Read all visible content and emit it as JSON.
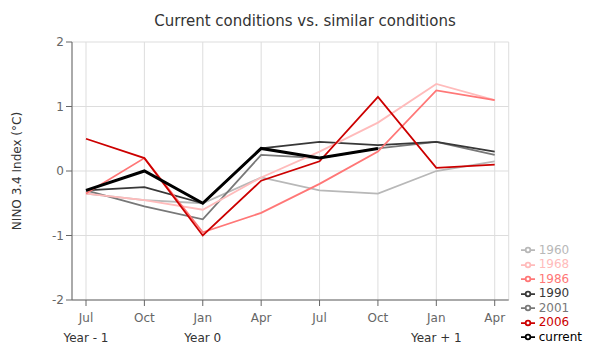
{
  "chart_data": {
    "type": "line",
    "title": "Current conditions vs. similar conditions",
    "ylabel": "NINO 3.4 Index (°C)",
    "categories": [
      "Jul",
      "Oct",
      "Jan",
      "Apr",
      "Jul",
      "Oct",
      "Jan",
      "Apr"
    ],
    "series": [
      {
        "name": "1960",
        "color": "#b8b8b8",
        "values": [
          -0.35,
          -0.45,
          -0.5,
          -0.1,
          -0.3,
          -0.35,
          0.0,
          0.15
        ]
      },
      {
        "name": "2001",
        "color": "#787878",
        "values": [
          -0.3,
          -0.55,
          -0.75,
          0.25,
          0.2,
          0.35,
          0.45,
          0.25
        ]
      },
      {
        "name": "1990",
        "color": "#383838",
        "values": [
          -0.3,
          -0.25,
          -0.5,
          0.35,
          0.45,
          0.4,
          0.45,
          0.3
        ]
      },
      {
        "name": "1968",
        "color": "#ffbbbb",
        "values": [
          -0.35,
          -0.45,
          -0.6,
          -0.1,
          0.3,
          0.75,
          1.35,
          1.1
        ]
      },
      {
        "name": "1986",
        "color": "#ff7777",
        "values": [
          -0.35,
          0.2,
          -0.95,
          -0.65,
          -0.2,
          0.3,
          1.25,
          1.1
        ]
      },
      {
        "name": "2006",
        "color": "#cc0000",
        "values": [
          0.5,
          0.2,
          -1.0,
          -0.15,
          0.15,
          1.15,
          0.05,
          0.1
        ]
      },
      {
        "name": "current",
        "color": "#000000",
        "values": [
          -0.3,
          0.0,
          -0.5,
          0.35,
          0.2,
          0.35,
          null,
          null
        ]
      }
    ],
    "ylim": [
      -2,
      2
    ],
    "yticks": [
      -2,
      -1,
      0,
      1,
      2
    ],
    "grid": true,
    "legend": "lower right",
    "annotations": [
      {
        "text": "Year - 1",
        "x": 0
      },
      {
        "text": "Year 0",
        "x": 2
      },
      {
        "text": "Year + 1",
        "x": 6
      }
    ]
  }
}
